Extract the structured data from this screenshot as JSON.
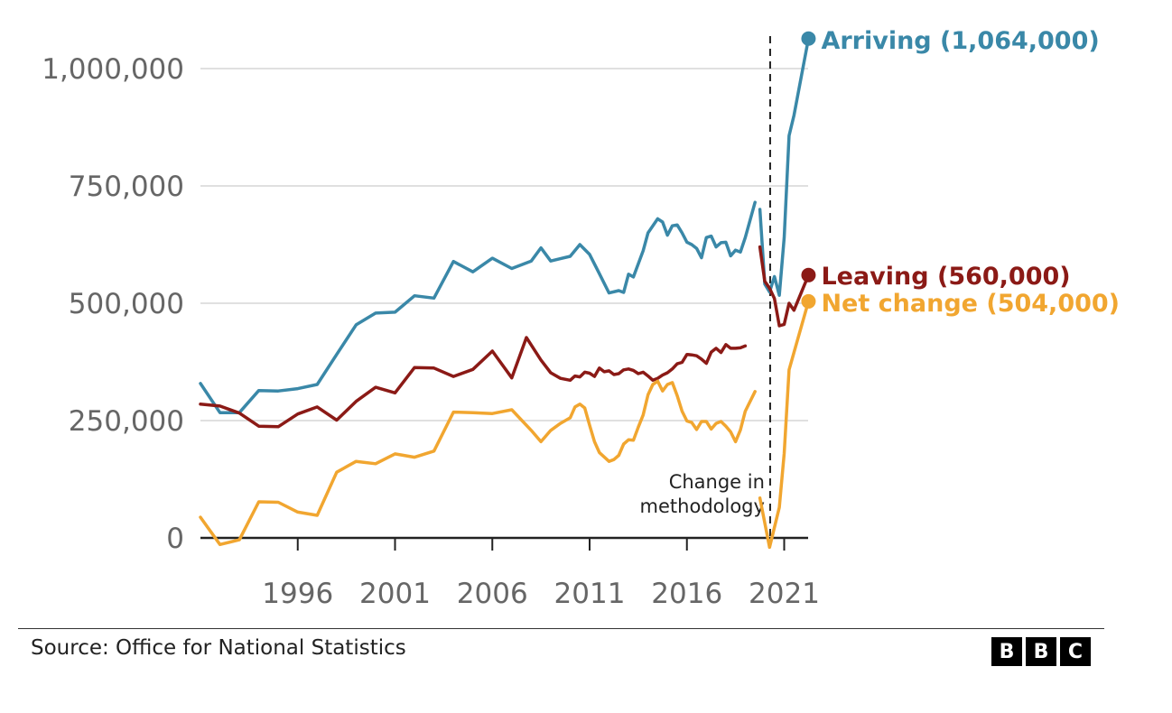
{
  "chart_data": {
    "type": "line",
    "title": "",
    "xlabel": "",
    "ylabel": "",
    "xlim": [
      1991,
      2023.5
    ],
    "ylim": [
      0,
      1064000
    ],
    "y_ticks": [
      0,
      250000,
      500000,
      750000,
      1000000
    ],
    "y_tick_labels": [
      "0",
      "250,000",
      "500,000",
      "750,000",
      "1,000,000"
    ],
    "x_ticks": [
      1996,
      2001,
      2006,
      2011,
      2016,
      2021
    ],
    "x_tick_labels": [
      "1996",
      "2001",
      "2006",
      "2011",
      "2016",
      "2021"
    ],
    "grid": "horizontal",
    "annotation": {
      "x": 2020.0,
      "lines": [
        "Change in",
        "methodology"
      ]
    },
    "series": [
      {
        "key": "arriving",
        "name": "Arriving (1,064,000)",
        "color": "#3a88a8",
        "points": [
          [
            1991.0,
            329000
          ],
          [
            1992.0,
            267000
          ],
          [
            1993.0,
            267000
          ],
          [
            1994.0,
            314000
          ],
          [
            1995.0,
            313000
          ],
          [
            1996.0,
            318000
          ],
          [
            1997.0,
            327000
          ],
          [
            1998.0,
            391000
          ],
          [
            1999.0,
            454000
          ],
          [
            2000.0,
            479000
          ],
          [
            2001.0,
            481000
          ],
          [
            2002.0,
            516000
          ],
          [
            2003.0,
            511000
          ],
          [
            2004.0,
            589000
          ],
          [
            2005.0,
            567000
          ],
          [
            2006.0,
            596000
          ],
          [
            2007.0,
            574000
          ],
          [
            2008.0,
            590000
          ],
          [
            2008.5,
            618000
          ],
          [
            2009.0,
            590000
          ],
          [
            2009.5,
            595000
          ],
          [
            2010.0,
            600000
          ],
          [
            2010.5,
            625000
          ],
          [
            2011.0,
            604000
          ],
          [
            2011.5,
            563000
          ],
          [
            2012.0,
            522000
          ],
          [
            2012.5,
            527000
          ],
          [
            2012.75,
            523000
          ],
          [
            2013.0,
            562000
          ],
          [
            2013.25,
            556000
          ],
          [
            2013.75,
            612000
          ],
          [
            2014.0,
            650000
          ],
          [
            2014.5,
            680000
          ],
          [
            2014.75,
            673000
          ],
          [
            2015.0,
            645000
          ],
          [
            2015.25,
            665000
          ],
          [
            2015.5,
            667000
          ],
          [
            2015.75,
            650000
          ],
          [
            2016.0,
            630000
          ],
          [
            2016.25,
            625000
          ],
          [
            2016.5,
            617000
          ],
          [
            2016.75,
            597000
          ],
          [
            2017.0,
            640000
          ],
          [
            2017.25,
            643000
          ],
          [
            2017.5,
            620000
          ],
          [
            2017.75,
            629000
          ],
          [
            2018.0,
            630000
          ],
          [
            2018.25,
            601000
          ],
          [
            2018.5,
            613000
          ],
          [
            2018.75,
            609000
          ],
          [
            2019.0,
            640000
          ],
          [
            2019.5,
            715000
          ]
        ],
        "points_new": [
          [
            2019.75,
            700000
          ],
          [
            2020.0,
            541000
          ],
          [
            2020.25,
            524000
          ],
          [
            2020.5,
            557000
          ],
          [
            2020.75,
            517000
          ],
          [
            2021.0,
            640000
          ],
          [
            2021.25,
            857000
          ],
          [
            2021.5,
            900000
          ],
          [
            2022.25,
            1064000
          ]
        ]
      },
      {
        "key": "leaving",
        "name": "Leaving (560,000)",
        "color": "#8b1a16",
        "points": [
          [
            1991.0,
            285000
          ],
          [
            1992.0,
            281000
          ],
          [
            1993.0,
            266000
          ],
          [
            1994.0,
            238000
          ],
          [
            1995.0,
            237000
          ],
          [
            1996.0,
            264000
          ],
          [
            1997.0,
            279000
          ],
          [
            1998.0,
            251000
          ],
          [
            1999.0,
            291000
          ],
          [
            2000.0,
            321000
          ],
          [
            2001.0,
            309000
          ],
          [
            2002.0,
            363000
          ],
          [
            2003.0,
            362000
          ],
          [
            2004.0,
            344000
          ],
          [
            2005.0,
            359000
          ],
          [
            2006.0,
            398000
          ],
          [
            2007.0,
            341000
          ],
          [
            2007.75,
            427000
          ],
          [
            2008.5,
            379000
          ],
          [
            2009.0,
            352000
          ],
          [
            2009.5,
            340000
          ],
          [
            2010.0,
            336000
          ],
          [
            2010.25,
            345000
          ],
          [
            2010.5,
            343000
          ],
          [
            2010.75,
            353000
          ],
          [
            2011.0,
            351000
          ],
          [
            2011.25,
            344000
          ],
          [
            2011.5,
            362000
          ],
          [
            2011.75,
            354000
          ],
          [
            2012.0,
            356000
          ],
          [
            2012.25,
            348000
          ],
          [
            2012.5,
            350000
          ],
          [
            2012.75,
            358000
          ],
          [
            2013.0,
            360000
          ],
          [
            2013.25,
            357000
          ],
          [
            2013.5,
            350000
          ],
          [
            2013.75,
            353000
          ],
          [
            2014.0,
            345000
          ],
          [
            2014.25,
            336000
          ],
          [
            2014.5,
            340000
          ],
          [
            2014.75,
            347000
          ],
          [
            2015.0,
            352000
          ],
          [
            2015.25,
            360000
          ],
          [
            2015.5,
            371000
          ],
          [
            2015.75,
            374000
          ],
          [
            2016.0,
            391000
          ],
          [
            2016.25,
            390000
          ],
          [
            2016.5,
            388000
          ],
          [
            2016.75,
            381000
          ],
          [
            2017.0,
            372000
          ],
          [
            2017.25,
            396000
          ],
          [
            2017.5,
            404000
          ],
          [
            2017.75,
            395000
          ],
          [
            2018.0,
            412000
          ],
          [
            2018.25,
            404000
          ],
          [
            2018.5,
            404000
          ],
          [
            2018.75,
            405000
          ],
          [
            2019.0,
            409000
          ]
        ],
        "points_new": [
          [
            2019.75,
            620000
          ],
          [
            2020.0,
            547000
          ],
          [
            2020.25,
            532000
          ],
          [
            2020.5,
            510000
          ],
          [
            2020.75,
            452000
          ],
          [
            2021.0,
            455000
          ],
          [
            2021.25,
            500000
          ],
          [
            2021.5,
            485000
          ],
          [
            2022.25,
            560000
          ]
        ]
      },
      {
        "key": "net",
        "name": "Net change (504,000)",
        "color": "#f1a630",
        "points": [
          [
            1991.0,
            44000
          ],
          [
            1992.0,
            -14000
          ],
          [
            1993.0,
            -4000
          ],
          [
            1994.0,
            77000
          ],
          [
            1995.0,
            76000
          ],
          [
            1996.0,
            55000
          ],
          [
            1997.0,
            48000
          ],
          [
            1998.0,
            140000
          ],
          [
            1999.0,
            163000
          ],
          [
            2000.0,
            158000
          ],
          [
            2001.0,
            179000
          ],
          [
            2002.0,
            172000
          ],
          [
            2003.0,
            185000
          ],
          [
            2004.0,
            268000
          ],
          [
            2005.0,
            267000
          ],
          [
            2006.0,
            265000
          ],
          [
            2007.0,
            273000
          ],
          [
            2008.0,
            229000
          ],
          [
            2008.5,
            205000
          ],
          [
            2009.0,
            229000
          ],
          [
            2009.5,
            244000
          ],
          [
            2010.0,
            256000
          ],
          [
            2010.25,
            279000
          ],
          [
            2010.5,
            285000
          ],
          [
            2010.75,
            277000
          ],
          [
            2011.0,
            240000
          ],
          [
            2011.25,
            205000
          ],
          [
            2011.5,
            182000
          ],
          [
            2012.0,
            163000
          ],
          [
            2012.25,
            167000
          ],
          [
            2012.5,
            176000
          ],
          [
            2012.75,
            200000
          ],
          [
            2013.0,
            209000
          ],
          [
            2013.25,
            208000
          ],
          [
            2013.5,
            236000
          ],
          [
            2013.75,
            262000
          ],
          [
            2014.0,
            305000
          ],
          [
            2014.25,
            327000
          ],
          [
            2014.5,
            334000
          ],
          [
            2014.75,
            313000
          ],
          [
            2015.0,
            327000
          ],
          [
            2015.25,
            331000
          ],
          [
            2015.5,
            303000
          ],
          [
            2015.75,
            270000
          ],
          [
            2016.0,
            249000
          ],
          [
            2016.25,
            246000
          ],
          [
            2016.5,
            231000
          ],
          [
            2016.75,
            248000
          ],
          [
            2017.0,
            248000
          ],
          [
            2017.25,
            232000
          ],
          [
            2017.5,
            244000
          ],
          [
            2017.75,
            248000
          ],
          [
            2018.0,
            238000
          ],
          [
            2018.25,
            226000
          ],
          [
            2018.5,
            205000
          ],
          [
            2018.75,
            230000
          ],
          [
            2019.0,
            270000
          ],
          [
            2019.5,
            312000
          ]
        ],
        "points_new": [
          [
            2019.75,
            85000
          ],
          [
            2020.25,
            -20000
          ],
          [
            2020.75,
            65000
          ],
          [
            2021.0,
            180000
          ],
          [
            2021.25,
            358000
          ],
          [
            2021.5,
            395000
          ],
          [
            2022.25,
            504000
          ]
        ]
      }
    ]
  },
  "footer": {
    "source": "Source: Office for National Statistics",
    "logo_letters": [
      "B",
      "B",
      "C"
    ]
  }
}
